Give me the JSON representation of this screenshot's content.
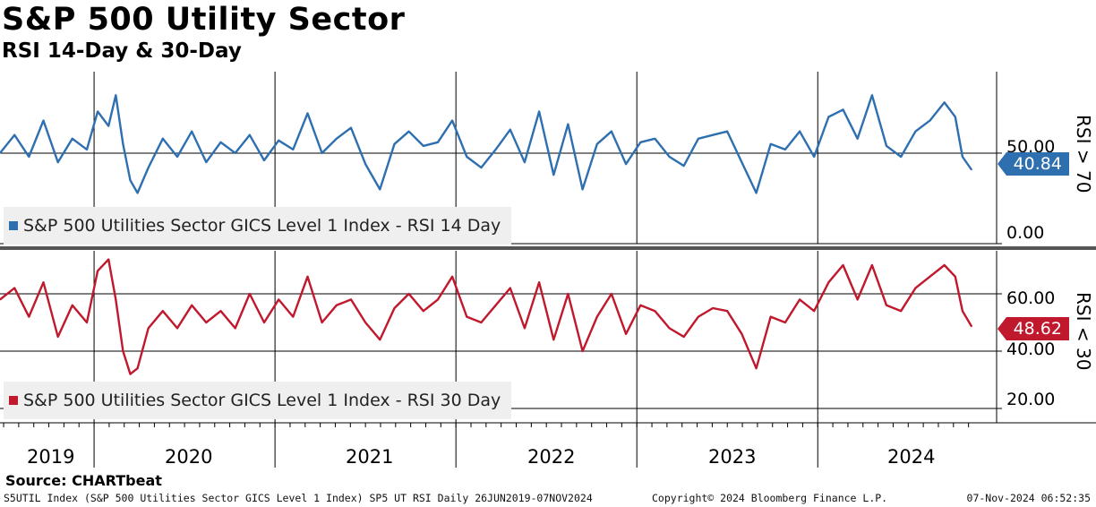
{
  "title": "S&P 500 Utility Sector",
  "subtitle": "RSI 14-Day & 30-Day",
  "source": "Source: CHARTbeat",
  "footer": {
    "left": "S5UTIL Index (S&P 500 Utilities Sector GICS Level 1 Index) SP5 UT RSI  Daily 26JUN2019-07NOV2024",
    "middle": "Copyright© 2024 Bloomberg Finance L.P.",
    "right": "07-Nov-2024 06:52:35"
  },
  "colors": {
    "rsi14": "#2e6fb0",
    "rsi30": "#c0182c",
    "grid": "#000000",
    "legend_bg": "#efefef"
  },
  "chart_data": [
    {
      "type": "line",
      "title": "S&P 500 Utilities Sector GICS Level 1 Index - RSI 14 Day",
      "legend": "S&P 500 Utilities Sector GICS Level 1 Index - RSI 14 Day",
      "side_label": "RSI > 70",
      "last_value": "40.84",
      "yticks": [
        "50.00",
        "0.00"
      ],
      "ylim": [
        0,
        95
      ],
      "x_years": [
        "2019",
        "2020",
        "2021",
        "2022",
        "2023",
        "2024"
      ],
      "x_range": [
        2019.48,
        2024.85
      ],
      "series": [
        {
          "name": "RSI 14 Day",
          "x": [
            2019.48,
            2019.56,
            2019.64,
            2019.72,
            2019.8,
            2019.88,
            2019.96,
            2020.02,
            2020.08,
            2020.12,
            2020.16,
            2020.2,
            2020.24,
            2020.3,
            2020.38,
            2020.46,
            2020.54,
            2020.62,
            2020.7,
            2020.78,
            2020.86,
            2020.94,
            2021.02,
            2021.1,
            2021.18,
            2021.26,
            2021.34,
            2021.42,
            2021.5,
            2021.58,
            2021.66,
            2021.74,
            2021.82,
            2021.9,
            2021.98,
            2022.06,
            2022.14,
            2022.22,
            2022.3,
            2022.38,
            2022.46,
            2022.54,
            2022.62,
            2022.7,
            2022.78,
            2022.86,
            2022.94,
            2023.02,
            2023.1,
            2023.18,
            2023.26,
            2023.34,
            2023.42,
            2023.5,
            2023.58,
            2023.66,
            2023.74,
            2023.82,
            2023.9,
            2023.98,
            2024.06,
            2024.14,
            2024.22,
            2024.3,
            2024.38,
            2024.46,
            2024.54,
            2024.62,
            2024.7,
            2024.76,
            2024.8,
            2024.85
          ],
          "values": [
            50,
            60,
            48,
            68,
            45,
            58,
            52,
            73,
            65,
            82,
            55,
            35,
            28,
            42,
            58,
            48,
            62,
            45,
            56,
            50,
            60,
            46,
            57,
            52,
            72,
            50,
            58,
            64,
            44,
            30,
            55,
            62,
            54,
            56,
            68,
            48,
            42,
            52,
            63,
            45,
            73,
            38,
            66,
            30,
            55,
            62,
            44,
            56,
            58,
            48,
            43,
            58,
            60,
            62,
            45,
            28,
            55,
            52,
            62,
            48,
            70,
            74,
            58,
            82,
            54,
            48,
            62,
            68,
            78,
            70,
            48,
            40.84
          ]
        }
      ]
    },
    {
      "type": "line",
      "title": "S&P 500 Utilities Sector GICS Level 1 Index - RSI 30 Day",
      "legend": "S&P 500 Utilities Sector GICS Level 1 Index - RSI 30 Day",
      "side_label": "RSI < 30",
      "last_value": "48.62",
      "yticks": [
        "60.00",
        "40.00",
        "20.00"
      ],
      "ylim": [
        15,
        75
      ],
      "x_years": [
        "2019",
        "2020",
        "2021",
        "2022",
        "2023",
        "2024"
      ],
      "x_range": [
        2019.48,
        2024.85
      ],
      "series": [
        {
          "name": "RSI 30 Day",
          "x": [
            2019.48,
            2019.56,
            2019.64,
            2019.72,
            2019.8,
            2019.88,
            2019.96,
            2020.02,
            2020.08,
            2020.12,
            2020.16,
            2020.2,
            2020.24,
            2020.3,
            2020.38,
            2020.46,
            2020.54,
            2020.62,
            2020.7,
            2020.78,
            2020.86,
            2020.94,
            2021.02,
            2021.1,
            2021.18,
            2021.26,
            2021.34,
            2021.42,
            2021.5,
            2021.58,
            2021.66,
            2021.74,
            2021.82,
            2021.9,
            2021.98,
            2022.06,
            2022.14,
            2022.22,
            2022.3,
            2022.38,
            2022.46,
            2022.54,
            2022.62,
            2022.7,
            2022.78,
            2022.86,
            2022.94,
            2023.02,
            2023.1,
            2023.18,
            2023.26,
            2023.34,
            2023.42,
            2023.5,
            2023.58,
            2023.66,
            2023.74,
            2023.82,
            2023.9,
            2023.98,
            2024.06,
            2024.14,
            2024.22,
            2024.3,
            2024.38,
            2024.46,
            2024.54,
            2024.62,
            2024.7,
            2024.76,
            2024.8,
            2024.85
          ],
          "values": [
            58,
            62,
            52,
            64,
            45,
            56,
            50,
            68,
            72,
            58,
            40,
            32,
            34,
            48,
            54,
            48,
            56,
            50,
            54,
            48,
            60,
            50,
            58,
            52,
            66,
            50,
            56,
            58,
            50,
            44,
            55,
            60,
            54,
            58,
            66,
            52,
            50,
            56,
            62,
            48,
            64,
            44,
            60,
            40,
            52,
            60,
            46,
            56,
            54,
            48,
            45,
            52,
            55,
            54,
            46,
            34,
            52,
            50,
            58,
            54,
            64,
            70,
            58,
            70,
            56,
            54,
            62,
            66,
            70,
            66,
            54,
            48.62
          ]
        }
      ]
    }
  ]
}
